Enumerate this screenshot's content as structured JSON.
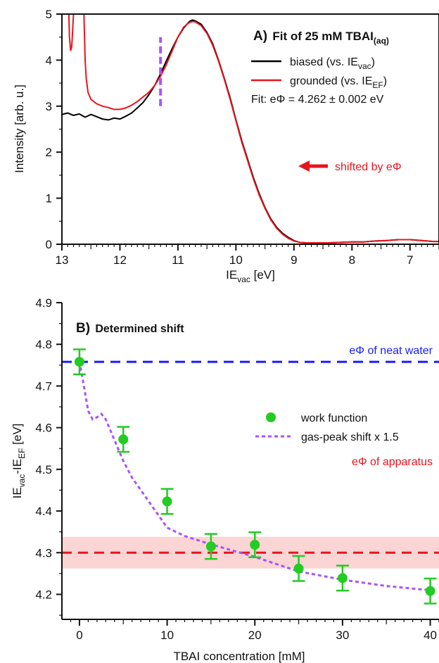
{
  "chart_data": [
    {
      "type": "line",
      "panel_label": "A)",
      "title": "Fit of 25 mM TBAI",
      "title_sub": "(aq)",
      "xlabel_main": "IE",
      "xlabel_sub": "vac",
      "xlabel_unit": " [eV]",
      "ylabel": "Intensity [arb. u.]",
      "xlim": [
        13,
        6.5
      ],
      "ylim": [
        0,
        5
      ],
      "x_ticks": [
        "13",
        "12",
        "11",
        "10",
        "9",
        "8",
        "7"
      ],
      "y_ticks": [
        "0",
        "1",
        "2",
        "3",
        "4",
        "5"
      ],
      "series": [
        {
          "name_main": "biased (vs. IE",
          "name_sub": "vac",
          "name_end": ")",
          "color": "#000000",
          "x": [
            13.0,
            12.9,
            12.8,
            12.7,
            12.6,
            12.5,
            12.4,
            12.3,
            12.2,
            12.1,
            12.0,
            11.9,
            11.8,
            11.7,
            11.6,
            11.5,
            11.4,
            11.3,
            11.2,
            11.1,
            11.0,
            10.9,
            10.8,
            10.75,
            10.7,
            10.6,
            10.5,
            10.4,
            10.3,
            10.2,
            10.1,
            10.0,
            9.9,
            9.8,
            9.7,
            9.6,
            9.5,
            9.4,
            9.3,
            9.2,
            9.1,
            9.0,
            8.9,
            8.8,
            8.6,
            8.4,
            8.2,
            8.0,
            7.8,
            7.6,
            7.4,
            7.2,
            7.0,
            6.8,
            6.6,
            6.5
          ],
          "y": [
            2.82,
            2.85,
            2.8,
            2.83,
            2.76,
            2.82,
            2.77,
            2.72,
            2.7,
            2.74,
            2.72,
            2.78,
            2.85,
            2.96,
            3.08,
            3.25,
            3.45,
            3.7,
            3.98,
            4.25,
            4.5,
            4.7,
            4.84,
            4.87,
            4.85,
            4.78,
            4.6,
            4.35,
            4.0,
            3.6,
            3.18,
            2.7,
            2.25,
            1.85,
            1.45,
            1.1,
            0.8,
            0.55,
            0.37,
            0.24,
            0.15,
            0.08,
            0.04,
            0.03,
            0.03,
            0.03,
            0.04,
            0.05,
            0.05,
            0.07,
            0.08,
            0.1,
            0.1,
            0.08,
            0.06,
            0.06
          ]
        },
        {
          "name_main": "grounded (vs. IE",
          "name_sub": "EF",
          "name_end": ")",
          "color": "#e8141e",
          "x": [
            12.88,
            12.87,
            12.85,
            12.83,
            12.8,
            12.62,
            12.6,
            12.58,
            12.55,
            12.5,
            12.4,
            12.3,
            12.2,
            12.1,
            12.0,
            11.9,
            11.8,
            11.7,
            11.6,
            11.5,
            11.4,
            11.3,
            11.2,
            11.1,
            11.0,
            10.9,
            10.8,
            10.75,
            10.7,
            10.6,
            10.5,
            10.4,
            10.3,
            10.2,
            10.1,
            10.0,
            9.9,
            9.8,
            9.7,
            9.6,
            9.5,
            9.4,
            9.3,
            9.2,
            9.1,
            9.0,
            8.9,
            8.8,
            8.6,
            8.4,
            8.2,
            8.0,
            7.8,
            7.6,
            7.4,
            7.2,
            7.0,
            6.8,
            6.6,
            6.5
          ],
          "y": [
            5.0,
            4.5,
            4.2,
            4.3,
            5.0,
            5.0,
            4.0,
            3.6,
            3.3,
            3.15,
            3.05,
            3.0,
            2.97,
            2.93,
            2.93,
            2.96,
            3.02,
            3.1,
            3.2,
            3.3,
            3.45,
            3.65,
            3.9,
            4.2,
            4.5,
            4.72,
            4.82,
            4.84,
            4.83,
            4.75,
            4.58,
            4.32,
            3.98,
            3.58,
            3.15,
            2.68,
            2.22,
            1.82,
            1.42,
            1.07,
            0.78,
            0.53,
            0.35,
            0.22,
            0.13,
            0.07,
            0.04,
            0.03,
            0.03,
            0.03,
            0.04,
            0.05,
            0.05,
            0.07,
            0.08,
            0.1,
            0.1,
            0.08,
            0.06,
            0.06
          ]
        }
      ],
      "marker_line": {
        "x": 11.3,
        "y": [
          3.0,
          4.5
        ],
        "color": "#a855f7"
      },
      "fit_text": "Fit: eΦ = 4.262 ± 0.002 eV",
      "arrow_label": "shifted by eΦ",
      "accent_red": "#e8141e"
    },
    {
      "type": "scatter",
      "panel_label": "B)",
      "title": "Determined shift",
      "xlabel": "TBAI concentration [mM]",
      "ylabel_a": "IE",
      "ylabel_a_sub": "vac",
      "ylabel_b": "-IE",
      "ylabel_b_sub": "EF",
      "ylabel_unit": " [eV]",
      "xlim": [
        -2,
        41
      ],
      "ylim": [
        4.14,
        4.9
      ],
      "x_ticks": [
        "0",
        "10",
        "20",
        "30",
        "40"
      ],
      "y_ticks": [
        "4.2",
        "4.3",
        "4.4",
        "4.5",
        "4.6",
        "4.7",
        "4.8",
        "4.9"
      ],
      "series": [
        {
          "name": "work function",
          "color": "#22cc22",
          "x": [
            0,
            5,
            10,
            15,
            20,
            25,
            30,
            40
          ],
          "y": [
            4.758,
            4.572,
            4.423,
            4.315,
            4.319,
            4.262,
            4.239,
            4.208
          ],
          "err": [
            0.03,
            0.03,
            0.03,
            0.03,
            0.03,
            0.03,
            0.03,
            0.03
          ]
        },
        {
          "name": "gas-peak shift x 1.5",
          "color": "#a855f7",
          "x": [
            0,
            0.5,
            1,
            1.5,
            2,
            2.5,
            3,
            4,
            5,
            6,
            8,
            10,
            12,
            15,
            20,
            25,
            30,
            35,
            40
          ],
          "y": [
            4.76,
            4.7,
            4.64,
            4.62,
            4.625,
            4.633,
            4.62,
            4.57,
            4.52,
            4.48,
            4.42,
            4.36,
            4.34,
            4.32,
            4.29,
            4.255,
            4.235,
            4.22,
            4.21
          ]
        }
      ],
      "reference_lines": [
        {
          "label": "eΦ of neat water",
          "y": 4.758,
          "color": "#1a1aff"
        },
        {
          "label": "eΦ of apparatus",
          "y": 4.3,
          "color": "#e8141e",
          "band": [
            4.262,
            4.338
          ],
          "band_color": "#fbd4d4"
        }
      ]
    }
  ]
}
